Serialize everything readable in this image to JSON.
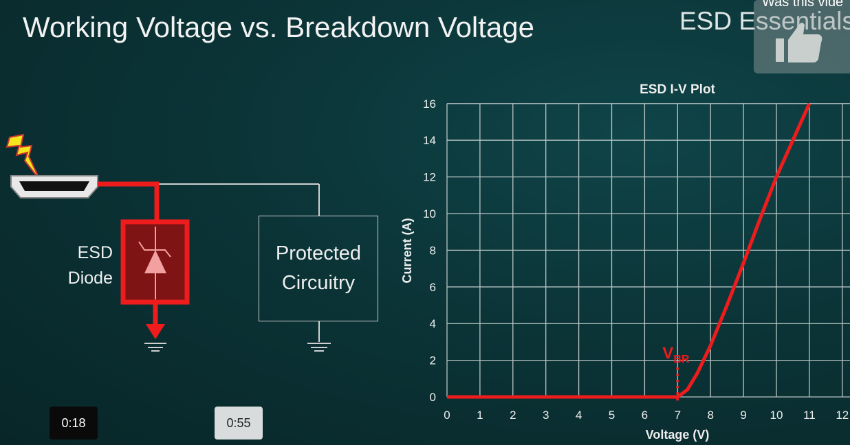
{
  "slide": {
    "title": "Working Voltage vs. Breakdown Voltage",
    "brand": "ESD Essentials",
    "diode_label_line1": "ESD",
    "diode_label_line2": "Diode",
    "protected_line1": "Protected",
    "protected_line2": "Circuitry"
  },
  "player": {
    "feedback_prompt": "Was this vide",
    "feedback_icon": "thumbs-up-icon",
    "time_current": "0:18",
    "time_hover": "0:55"
  },
  "colors": {
    "accent_red": "#ee1c1c",
    "background": "#0b3437"
  },
  "chart_data": {
    "type": "line",
    "title": "ESD I-V Plot",
    "xlabel": "Voltage (V)",
    "ylabel": "Current (A)",
    "xlim": [
      0,
      12
    ],
    "ylim": [
      0,
      16
    ],
    "x_ticks": [
      "0",
      "1",
      "2",
      "3",
      "4",
      "5",
      "6",
      "7",
      "8",
      "9",
      "10",
      "11",
      "12"
    ],
    "y_ticks": [
      "0",
      "2",
      "4",
      "6",
      "8",
      "10",
      "12",
      "14",
      "16"
    ],
    "grid": true,
    "series": [
      {
        "x": [
          0,
          7,
          7.3,
          7.6,
          8,
          8.5,
          9,
          9.5,
          10,
          10.5,
          11
        ],
        "y": [
          0,
          0,
          0.4,
          1.3,
          2.8,
          5,
          7.3,
          9.7,
          12,
          14,
          16
        ]
      }
    ],
    "annotation": {
      "text": "V",
      "subscript": "BR",
      "x": 7
    }
  }
}
